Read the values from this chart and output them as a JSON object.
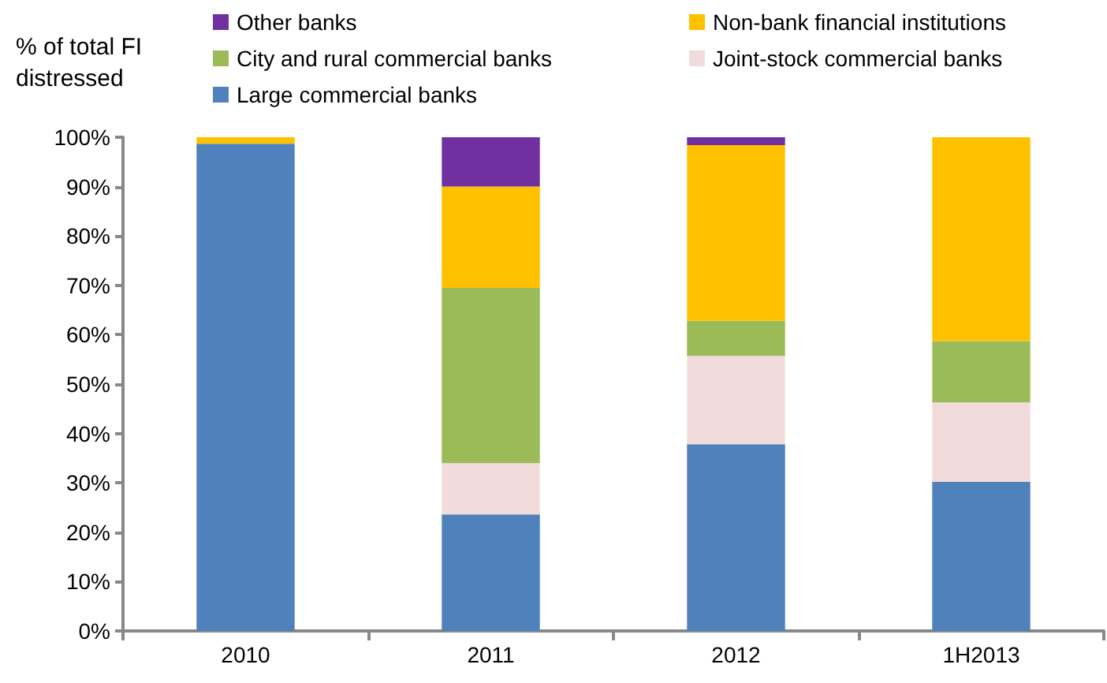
{
  "chart_data": {
    "type": "bar",
    "stacked": true,
    "ylabel": "% of total FI distressed",
    "categories": [
      "2010",
      "2011",
      "2012",
      "1H2013"
    ],
    "series": [
      {
        "name": "Large commercial banks",
        "color": "#4f81bd",
        "values": [
          98.7,
          23.6,
          37.8,
          30.2
        ]
      },
      {
        "name": "Joint-stock commercial banks",
        "color": "#f2dcdb",
        "values": [
          0,
          10.4,
          17.9,
          16.1
        ]
      },
      {
        "name": "City and rural commercial banks",
        "color": "#9bbb59",
        "values": [
          0,
          35.5,
          7.1,
          12.4
        ]
      },
      {
        "name": "Non-bank financial institutions",
        "color": "#ffc000",
        "values": [
          1.3,
          20.5,
          35.6,
          41.3
        ]
      },
      {
        "name": "Other banks",
        "color": "#7030a0",
        "values": [
          0,
          10,
          1.6,
          0
        ]
      }
    ],
    "ylim": [
      0,
      100
    ],
    "yticks": [
      {
        "value": 0,
        "label": "0%"
      },
      {
        "value": 10,
        "label": "10%"
      },
      {
        "value": 20,
        "label": "20%"
      },
      {
        "value": 30,
        "label": "30%"
      },
      {
        "value": 40,
        "label": "40%"
      },
      {
        "value": 50,
        "label": "50%"
      },
      {
        "value": 60,
        "label": "60%"
      },
      {
        "value": 70,
        "label": "70%"
      },
      {
        "value": 80,
        "label": "80%"
      },
      {
        "value": 90,
        "label": "90%"
      },
      {
        "value": 100,
        "label": "100%"
      }
    ],
    "grid": false,
    "legend": "top"
  }
}
